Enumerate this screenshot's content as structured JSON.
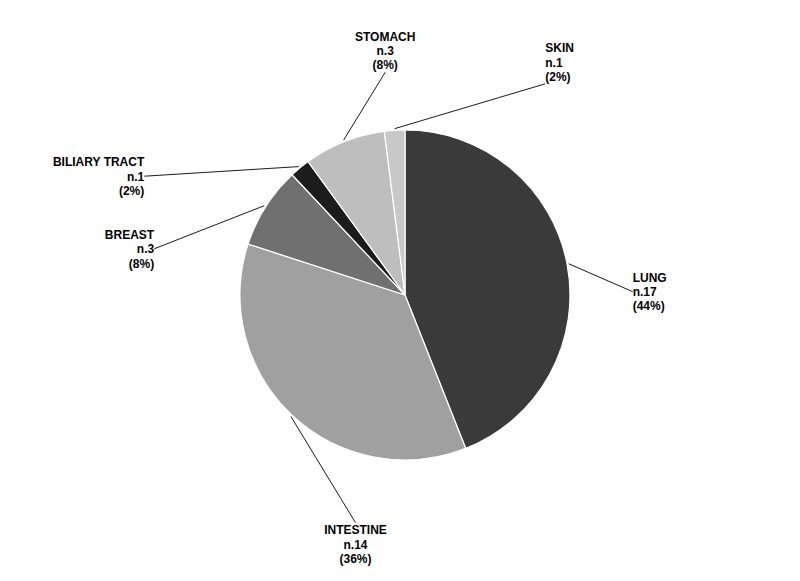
{
  "chart_data": {
    "type": "pie",
    "categories": [
      "LUNG",
      "INTESTINE",
      "BREAST",
      "BILIARY TRACT",
      "STOMACH",
      "SKIN"
    ],
    "values": [
      44,
      36,
      8,
      2,
      8,
      2
    ],
    "value_labels": [
      "(44%)",
      "(36%)",
      "(8%)",
      "(2%)",
      "(8%)",
      "(2%)"
    ],
    "count_labels": [
      "n.17",
      "n.14",
      "n.3",
      "n.1",
      "n.3",
      "n.1"
    ],
    "colors": [
      "#3a3a3a",
      "#a0a0a0",
      "#707070",
      "#1c1c1c",
      "#bebebe",
      "#c8c8c8"
    ]
  }
}
